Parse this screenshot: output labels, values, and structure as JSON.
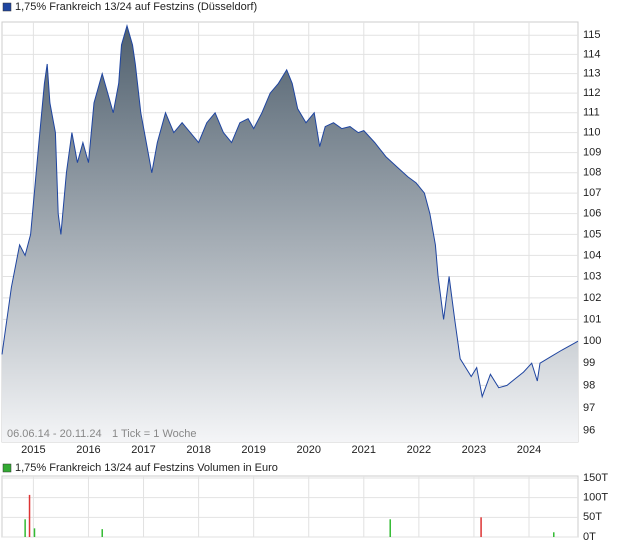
{
  "chart_data": [
    {
      "type": "area",
      "title": "1,75% Frankreich 13/24 auf Festzins (Düsseldorf)",
      "annotations": [
        "06.06.14 - 20.11.24",
        "1 Tick = 1 Woche"
      ],
      "log_scale": true,
      "grid": true,
      "xlim": [
        2014.43,
        2024.89
      ],
      "xticks": [
        2015,
        2016,
        2017,
        2018,
        2019,
        2020,
        2021,
        2022,
        2023,
        2024
      ],
      "ylim": [
        95.5,
        115.7
      ],
      "yticks": [
        96,
        97,
        98,
        99,
        100,
        101,
        102,
        103,
        104,
        105,
        106,
        107,
        108,
        109,
        110,
        111,
        112,
        113,
        114,
        115
      ],
      "series": [
        {
          "name": "1,75% Frankreich 13/24 auf Festzins (Düsseldorf)",
          "color": "#1f45a0",
          "x": [
            2014.43,
            2014.6,
            2014.75,
            2014.85,
            2014.95,
            2015.1,
            2015.2,
            2015.25,
            2015.3,
            2015.4,
            2015.45,
            2015.5,
            2015.6,
            2015.7,
            2015.8,
            2015.9,
            2016.0,
            2016.1,
            2016.25,
            2016.35,
            2016.45,
            2016.55,
            2016.6,
            2016.7,
            2016.8,
            2016.85,
            2016.95,
            2017.05,
            2017.15,
            2017.25,
            2017.4,
            2017.55,
            2017.7,
            2017.85,
            2018.0,
            2018.15,
            2018.3,
            2018.45,
            2018.6,
            2018.75,
            2018.9,
            2019.0,
            2019.15,
            2019.3,
            2019.45,
            2019.6,
            2019.7,
            2019.8,
            2019.95,
            2020.1,
            2020.2,
            2020.3,
            2020.45,
            2020.6,
            2020.75,
            2020.9,
            2021.0,
            2021.2,
            2021.4,
            2021.6,
            2021.8,
            2021.95,
            2022.1,
            2022.2,
            2022.3,
            2022.35,
            2022.45,
            2022.55,
            2022.65,
            2022.75,
            2022.85,
            2022.95,
            2023.05,
            2023.15,
            2023.3,
            2023.45,
            2023.6,
            2023.75,
            2023.9,
            2024.05,
            2024.15,
            2024.2,
            2024.4,
            2024.6,
            2024.89
          ],
          "values": [
            99.4,
            102.5,
            104.5,
            104.0,
            105.0,
            109.5,
            112.5,
            113.5,
            111.5,
            110.0,
            106.0,
            105.0,
            108.0,
            110.0,
            108.5,
            109.5,
            108.5,
            111.5,
            113.0,
            112.0,
            111.0,
            112.5,
            114.5,
            115.5,
            114.5,
            113.5,
            111.0,
            109.5,
            108.0,
            109.5,
            111.0,
            110.0,
            110.5,
            110.0,
            109.5,
            110.5,
            111.0,
            110.0,
            109.5,
            110.5,
            110.7,
            110.2,
            111.0,
            112.0,
            112.5,
            113.2,
            112.5,
            111.2,
            110.5,
            111.0,
            109.3,
            110.3,
            110.5,
            110.2,
            110.3,
            110.0,
            110.1,
            109.5,
            108.8,
            108.3,
            107.8,
            107.5,
            107.0,
            106.0,
            104.5,
            103.0,
            101.0,
            103.0,
            101.0,
            99.2,
            98.8,
            98.4,
            98.8,
            97.5,
            98.5,
            97.9,
            98.0,
            98.3,
            98.6,
            99.0,
            98.2,
            99.0,
            99.3,
            99.6,
            100.0
          ]
        }
      ]
    },
    {
      "type": "bar",
      "title": "1,75% Frankreich 13/24 auf Festzins Volumen in Euro",
      "legend_color": "#33aa33",
      "grid": true,
      "xlim": [
        2014.43,
        2024.89
      ],
      "xticks": [
        2015,
        2016,
        2017,
        2018,
        2019,
        2020,
        2021,
        2022,
        2023,
        2024
      ],
      "ylim": [
        0,
        155
      ],
      "yticks": [
        {
          "value": 0,
          "label": "0T"
        },
        {
          "value": 50,
          "label": "50T"
        },
        {
          "value": 100,
          "label": "100T"
        },
        {
          "value": 150,
          "label": "150T"
        }
      ],
      "x": [
        2014.85,
        2014.93,
        2015.02,
        2016.25,
        2021.48,
        2023.13,
        2024.45
      ],
      "values": [
        45,
        107,
        22,
        20,
        45,
        50,
        12
      ],
      "colors": [
        "#33bb33",
        "#dd3333",
        "#33bb33",
        "#33bb33",
        "#33bb33",
        "#dd3333",
        "#33bb33"
      ]
    }
  ]
}
